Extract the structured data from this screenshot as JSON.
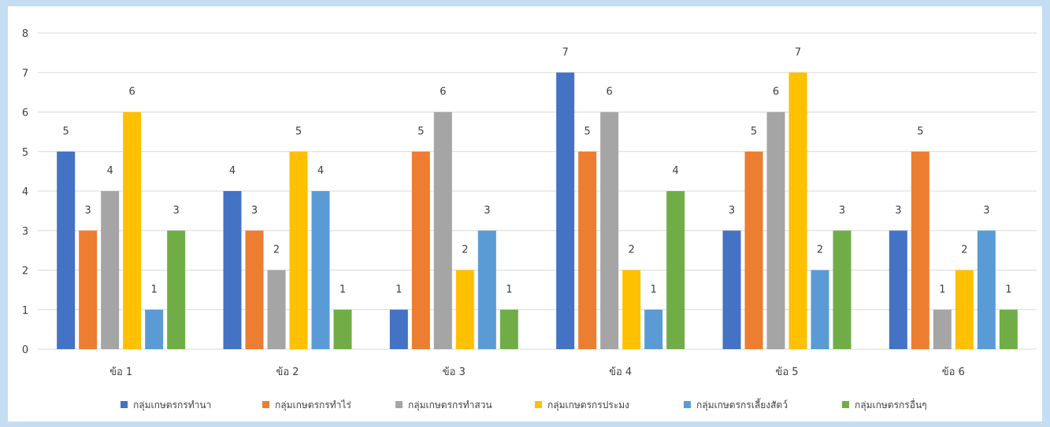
{
  "chart_data": {
    "type": "bar",
    "categories": [
      "ข้อ 1",
      "ข้อ 2",
      "ข้อ 3",
      "ข้อ 4",
      "ข้อ 5",
      "ข้อ 6"
    ],
    "series": [
      {
        "name": "กลุ่มเกษตรกรทำนา",
        "color": "#4472c4",
        "values": [
          5,
          4,
          1,
          7,
          3,
          3
        ]
      },
      {
        "name": "กลุ่มเกษตรกรทำไร่",
        "color": "#ed7d31",
        "values": [
          3,
          3,
          5,
          5,
          5,
          5
        ]
      },
      {
        "name": "กลุ่มเกษตรกรทำสวน",
        "color": "#a5a5a5",
        "values": [
          4,
          2,
          6,
          6,
          6,
          1
        ]
      },
      {
        "name": "กลุ่มเกษตรกรประมง",
        "color": "#ffc000",
        "values": [
          6,
          5,
          2,
          2,
          7,
          2
        ]
      },
      {
        "name": "กลุ่มเกษตรกรเลี้ยงสัตว์",
        "color": "#5b9bd5",
        "values": [
          1,
          4,
          3,
          1,
          2,
          3
        ]
      },
      {
        "name": "กลุ่มเกษตรกรอื่นๆ",
        "color": "#70ad47",
        "values": [
          3,
          1,
          1,
          4,
          3,
          1
        ]
      }
    ],
    "ylim": [
      0,
      8
    ],
    "yticks": [
      "0",
      "1",
      "2",
      "3",
      "4",
      "5",
      "6",
      "7",
      "8"
    ],
    "grid": true,
    "legend_position": "bottom",
    "data_labels": true,
    "title": "",
    "xlabel": "",
    "ylabel": ""
  }
}
